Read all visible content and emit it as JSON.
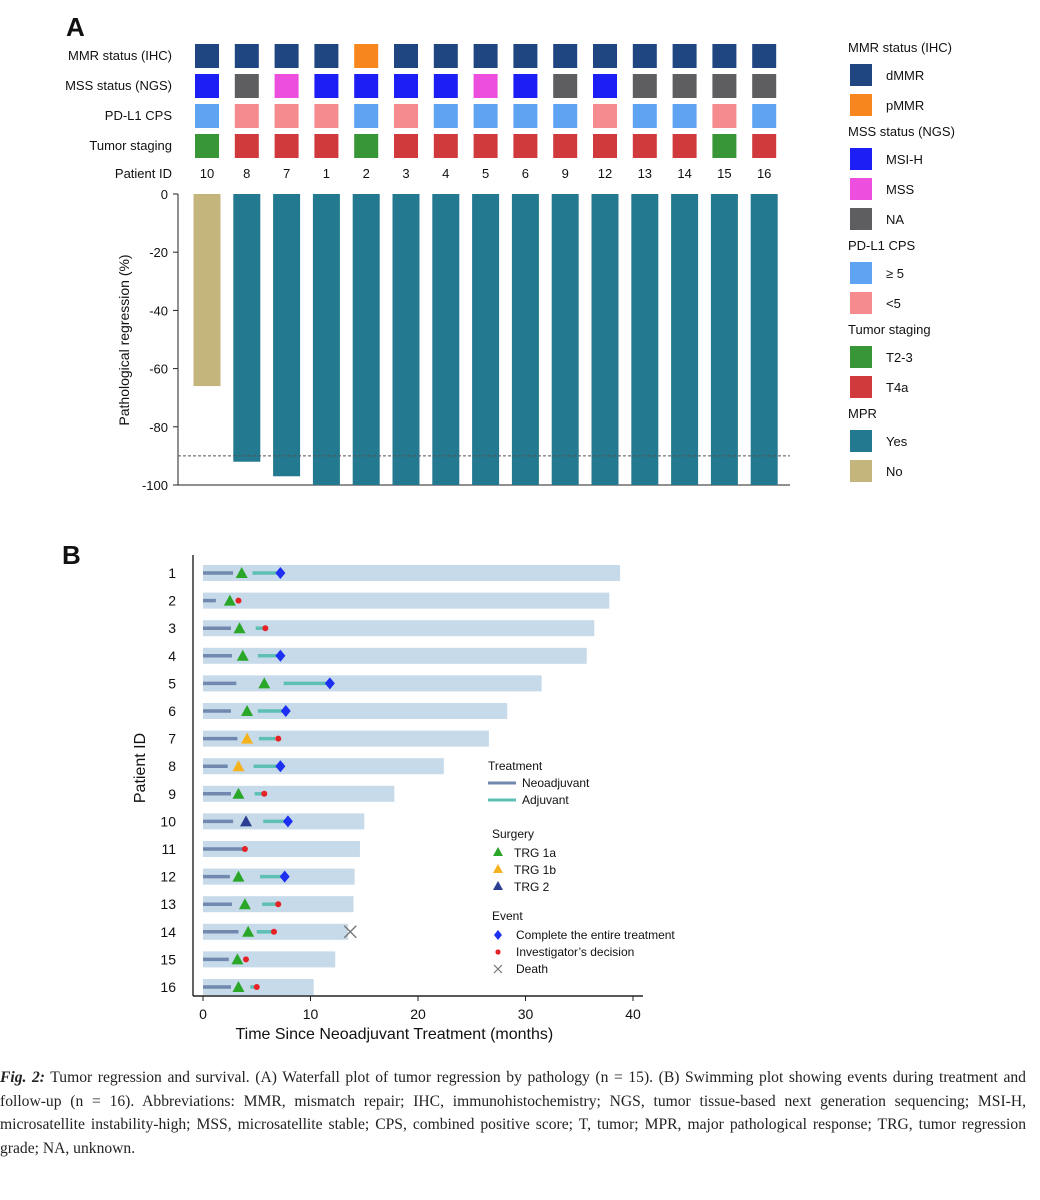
{
  "panel_a": {
    "label": "A",
    "row_labels": [
      "MMR status (IHC)",
      "MSS status (NGS)",
      "PD-L1 CPS",
      "Tumor staging",
      "Patient ID"
    ],
    "legend": [
      {
        "title": "MMR status (IHC)",
        "items": [
          {
            "label": "dMMR",
            "color": "#1f4681"
          },
          {
            "label": "pMMR",
            "color": "#f7861f"
          }
        ]
      },
      {
        "title": "MSS status (NGS)",
        "items": [
          {
            "label": "MSI-H",
            "color": "#1d1df5"
          },
          {
            "label": "MSS",
            "color": "#ec4fde"
          },
          {
            "label": "NA",
            "color": "#5e5e61"
          }
        ]
      },
      {
        "title": "PD-L1 CPS",
        "items": [
          {
            "label": "≥ 5",
            "color": "#5fa3f3"
          },
          {
            "label": "<5",
            "color": "#f58b8f"
          }
        ]
      },
      {
        "title": "Tumor staging",
        "items": [
          {
            "label": "T2-3",
            "color": "#389637"
          },
          {
            "label": "T4a",
            "color": "#d03a3c"
          }
        ]
      },
      {
        "title": "MPR",
        "items": [
          {
            "label": "Yes",
            "color": "#23798f"
          },
          {
            "label": "No",
            "color": "#c3b57c"
          }
        ]
      }
    ]
  },
  "chart_data": [
    {
      "type": "bar",
      "title": "Waterfall plot of tumor regression by pathology",
      "xlabel": "Patient ID",
      "ylabel": "Pathological regression (%)",
      "ylim": [
        -100,
        0
      ],
      "yticks": [
        0,
        -20,
        -40,
        -60,
        -80,
        -100
      ],
      "threshold": -90,
      "categories": [
        "10",
        "8",
        "7",
        "1",
        "2",
        "3",
        "4",
        "5",
        "6",
        "9",
        "12",
        "13",
        "14",
        "15",
        "16"
      ],
      "values": [
        -66,
        -92,
        -97,
        -100,
        -100,
        -100,
        -100,
        -100,
        -100,
        -100,
        -100,
        -100,
        -100,
        -100,
        -100
      ],
      "mpr": [
        "No",
        "Yes",
        "Yes",
        "Yes",
        "Yes",
        "Yes",
        "Yes",
        "Yes",
        "Yes",
        "Yes",
        "Yes",
        "Yes",
        "Yes",
        "Yes",
        "Yes"
      ],
      "mmr": [
        "dMMR",
        "dMMR",
        "dMMR",
        "dMMR",
        "pMMR",
        "dMMR",
        "dMMR",
        "dMMR",
        "dMMR",
        "dMMR",
        "dMMR",
        "dMMR",
        "dMMR",
        "dMMR",
        "dMMR"
      ],
      "mss": [
        "MSI-H",
        "NA",
        "MSS",
        "MSI-H",
        "MSI-H",
        "MSI-H",
        "MSI-H",
        "MSS",
        "MSI-H",
        "NA",
        "MSI-H",
        "NA",
        "NA",
        "NA",
        "NA"
      ],
      "pdl1": [
        "≥ 5",
        "<5",
        "<5",
        "<5",
        "≥ 5",
        "<5",
        "≥ 5",
        "≥ 5",
        "≥ 5",
        "≥ 5",
        "<5",
        "≥ 5",
        "≥ 5",
        "<5",
        "≥ 5"
      ],
      "staging": [
        "T2-3",
        "T4a",
        "T4a",
        "T4a",
        "T2-3",
        "T4a",
        "T4a",
        "T4a",
        "T4a",
        "T4a",
        "T4a",
        "T4a",
        "T4a",
        "T2-3",
        "T4a"
      ]
    },
    {
      "type": "swimmer",
      "panel_label": "B",
      "title": "Swimming plot showing events during treatment and follow-up",
      "xlabel": "Time Since Neoadjuvant Treatment (months)",
      "ylabel": "Patient ID",
      "xlim": [
        0,
        40
      ],
      "xticks": [
        0,
        10,
        20,
        30,
        40
      ],
      "patients": [
        {
          "id": "1",
          "followup": 38.8,
          "neo": [
            0,
            2.8
          ],
          "surgery": 3.6,
          "trg": "TRG 1a",
          "adj": [
            4.6,
            7.0
          ],
          "event": "Complete the entire treatment",
          "event_t": 7.2
        },
        {
          "id": "2",
          "followup": 37.8,
          "neo": [
            0,
            1.2
          ],
          "surgery": 2.5,
          "trg": "TRG 1a",
          "adj": null,
          "event": "Investigator's decision",
          "event_t": 3.3
        },
        {
          "id": "3",
          "followup": 36.4,
          "neo": [
            0,
            2.6
          ],
          "surgery": 3.4,
          "trg": "TRG 1a",
          "adj": [
            4.9,
            5.7
          ],
          "event": "Investigator's decision",
          "event_t": 5.8
        },
        {
          "id": "4",
          "followup": 35.7,
          "neo": [
            0,
            2.7
          ],
          "surgery": 3.7,
          "trg": "TRG 1a",
          "adj": [
            5.1,
            6.9
          ],
          "event": "Complete the entire treatment",
          "event_t": 7.2
        },
        {
          "id": "5",
          "followup": 31.5,
          "neo": [
            0,
            3.1
          ],
          "surgery": 5.7,
          "trg": "TRG 1a",
          "adj": [
            7.5,
            11.5
          ],
          "event": "Complete the entire treatment",
          "event_t": 11.8
        },
        {
          "id": "6",
          "followup": 28.3,
          "neo": [
            0,
            2.6
          ],
          "surgery": 4.1,
          "trg": "TRG 1a",
          "adj": [
            5.1,
            7.4
          ],
          "event": "Complete the entire treatment",
          "event_t": 7.7
        },
        {
          "id": "7",
          "followup": 26.6,
          "neo": [
            0,
            3.2
          ],
          "surgery": 4.1,
          "trg": "TRG 1b",
          "adj": [
            5.2,
            6.7
          ],
          "event": "Investigator's decision",
          "event_t": 7.0
        },
        {
          "id": "8",
          "followup": 22.4,
          "neo": [
            0,
            2.3
          ],
          "surgery": 3.3,
          "trg": "TRG 1b",
          "adj": [
            4.7,
            6.9
          ],
          "event": "Complete the entire treatment",
          "event_t": 7.2
        },
        {
          "id": "9",
          "followup": 17.8,
          "neo": [
            0,
            2.6
          ],
          "surgery": 3.3,
          "trg": "TRG 1a",
          "adj": [
            4.8,
            5.6
          ],
          "event": "Investigator's decision",
          "event_t": 5.7
        },
        {
          "id": "10",
          "followup": 15.0,
          "neo": [
            0,
            2.8
          ],
          "surgery": 4.0,
          "trg": "TRG 2",
          "adj": [
            5.6,
            7.6
          ],
          "event": "Complete the entire treatment",
          "event_t": 7.9
        },
        {
          "id": "11",
          "followup": 14.6,
          "neo": [
            0,
            3.7
          ],
          "surgery": null,
          "trg": null,
          "adj": null,
          "event": "Investigator's decision",
          "event_t": 3.9
        },
        {
          "id": "12",
          "followup": 14.1,
          "neo": [
            0,
            2.5
          ],
          "surgery": 3.3,
          "trg": "TRG 1a",
          "adj": [
            5.3,
            7.3
          ],
          "event": "Complete the entire treatment",
          "event_t": 7.6
        },
        {
          "id": "13",
          "followup": 14.0,
          "neo": [
            0,
            2.7
          ],
          "surgery": 3.9,
          "trg": "TRG 1a",
          "adj": [
            5.5,
            6.8
          ],
          "event": "Investigator's decision",
          "event_t": 7.0
        },
        {
          "id": "14",
          "followup": 13.5,
          "neo": [
            0,
            3.3
          ],
          "surgery": 4.2,
          "trg": "TRG 1a",
          "adj": [
            5.0,
            6.4
          ],
          "event": "Investigator's decision",
          "event_t": 6.6,
          "death": 13.7
        },
        {
          "id": "15",
          "followup": 12.3,
          "neo": [
            0,
            2.4
          ],
          "surgery": 3.2,
          "trg": "TRG 1a",
          "adj": null,
          "event": "Investigator's decision",
          "event_t": 4.0
        },
        {
          "id": "16",
          "followup": 10.3,
          "neo": [
            0,
            2.6
          ],
          "surgery": 3.3,
          "trg": "TRG 1a",
          "adj": [
            4.4,
            4.8
          ],
          "event": "Investigator's decision",
          "event_t": 5.0
        }
      ],
      "legend": {
        "treatment_title": "Treatment",
        "treatment": [
          {
            "label": "Neoadjuvant",
            "color": "#7189ae"
          },
          {
            "label": "Adjuvant",
            "color": "#5ec0b4"
          }
        ],
        "surgery_title": "Surgery",
        "surgery": [
          {
            "label": "TRG 1a",
            "color": "#2aa629"
          },
          {
            "label": "TRG 1b",
            "color": "#f5b21d"
          },
          {
            "label": "TRG  2",
            "color": "#2b3e92"
          }
        ],
        "event_title": "Event",
        "events": [
          {
            "label": "Complete the entire treatment",
            "color": "#1d2ff0"
          },
          {
            "label": "Investigator’s decision",
            "color": "#e52226"
          },
          {
            "label": "Death",
            "color": "#777777"
          }
        ]
      }
    }
  ],
  "caption": {
    "label": "Fig. 2:",
    "text": " Tumor regression and survival. (A) Waterfall plot of tumor regression by pathology (n = 15). (B) Swimming plot showing events during treatment and follow-up (n = 16). Abbreviations: MMR, mismatch repair; IHC, immunohistochemistry; NGS, tumor tissue-based next generation sequencing; MSI-H, microsatellite instability-high; MSS, microsatellite stable; CPS, combined positive score; T, tumor; MPR, major pathological response; TRG, tumor regression grade; NA, unknown."
  }
}
